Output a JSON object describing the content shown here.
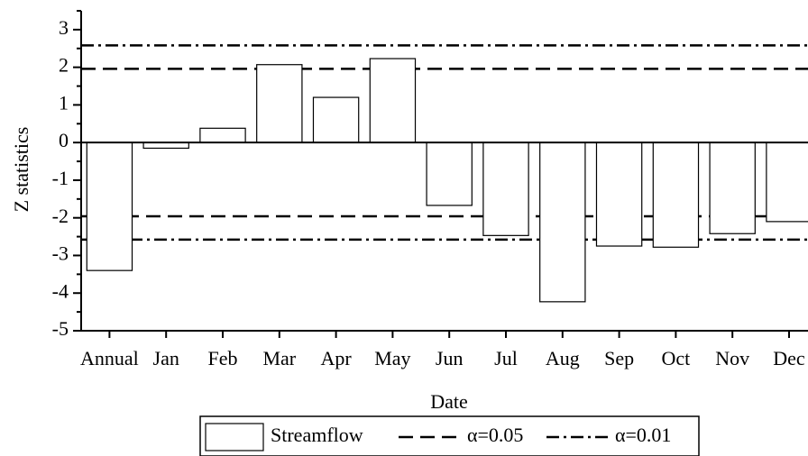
{
  "chart_data": {
    "type": "bar",
    "x_label": "Date",
    "y_label": "Z statistics",
    "categories": [
      "Annual",
      "Jan",
      "Feb",
      "Mar",
      "Apr",
      "May",
      "Jun",
      "Jul",
      "Aug",
      "Sep",
      "Oct",
      "Nov",
      "Dec"
    ],
    "series": [
      {
        "name": "Streamflow",
        "color": "#ffffff",
        "values": [
          -3.4,
          -0.15,
          0.38,
          2.07,
          1.2,
          2.23,
          -1.67,
          -2.47,
          -4.23,
          -2.75,
          -2.78,
          -2.42,
          -2.1
        ]
      }
    ],
    "reference_lines": [
      {
        "name": "α=0.05",
        "style": "dashed",
        "values": [
          1.96,
          -1.96
        ]
      },
      {
        "name": "α=0.01",
        "style": "dashdot",
        "values": [
          2.58,
          -2.58
        ]
      }
    ],
    "ylim": [
      -5,
      3.5
    ],
    "yticks": [
      -5,
      -4,
      -3,
      -2,
      -1,
      0,
      1,
      2,
      3
    ]
  }
}
